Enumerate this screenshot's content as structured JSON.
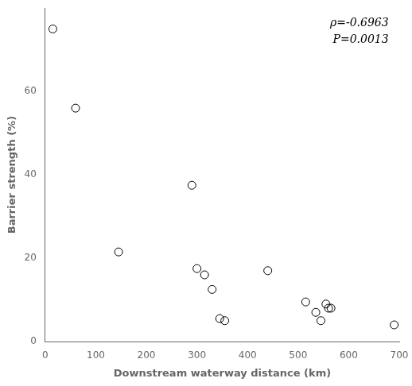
{
  "chart_data": {
    "type": "scatter",
    "x": [
      15,
      60,
      145,
      290,
      300,
      315,
      330,
      345,
      355,
      440,
      515,
      535,
      545,
      555,
      560,
      565,
      690
    ],
    "values": [
      75,
      56,
      21.5,
      37.5,
      17.5,
      16,
      12.5,
      5.5,
      5,
      17,
      9.5,
      7,
      5,
      9,
      8,
      8,
      4
    ],
    "xlabel": "Downstream waterway distance (km)",
    "ylabel": "Barrier strength (%)",
    "xlim": [
      0,
      700
    ],
    "ylim": [
      0,
      80
    ],
    "xticks": [
      0,
      100,
      200,
      300,
      400,
      500,
      600,
      700
    ],
    "yticks": [
      0,
      20,
      40,
      60
    ],
    "annotations": [
      "ρ=-0.6963",
      "P=0.0013"
    ],
    "color": "#000000",
    "marker": "open circle",
    "grid": false
  }
}
